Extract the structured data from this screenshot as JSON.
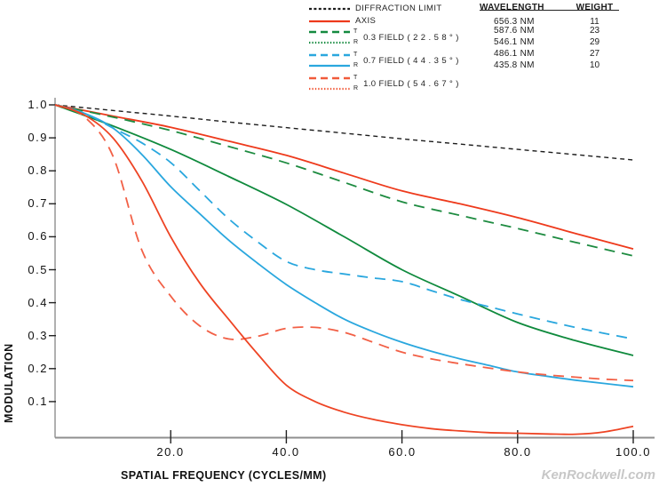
{
  "legend": {
    "items": [
      {
        "label": "DIFFRACTION LIMIT",
        "color": "#1c1c1c",
        "style": "dashed-fine"
      },
      {
        "label": "AXIS",
        "color": "#ee3a1c",
        "style": "solid"
      },
      {
        "t": "T",
        "r": "R",
        "label": "0.3 FIELD ( 2 2 . 5 8 ° )",
        "color": "#148a3f",
        "t_style": "dashed",
        "r_style": "dotted"
      },
      {
        "t": "T",
        "r": "R",
        "label": "0.7 FIELD ( 4 4 . 3 5 ° )",
        "color": "#2aa7de",
        "t_style": "dashed",
        "r_style": "solid"
      },
      {
        "t": "T",
        "r": "R",
        "label": "1.0 FIELD ( 5 4 . 6 7 ° )",
        "color": "#f15b3a",
        "t_style": "dashed",
        "r_style": "dotted"
      }
    ]
  },
  "wavelength_table": {
    "headers": [
      "WAVELENGTH",
      "WEIGHT"
    ],
    "rows": [
      [
        "656.3 NM",
        "11"
      ],
      [
        "587.6 NM",
        "23"
      ],
      [
        "546.1 NM",
        "29"
      ],
      [
        "486.1 NM",
        "27"
      ],
      [
        "435.8 NM",
        "10"
      ]
    ]
  },
  "axes": {
    "y_label": "MODULATION",
    "x_label": "SPATIAL FREQUENCY (CYCLES/MM)",
    "y_ticks": [
      "1.0",
      "0.9",
      "0.8",
      "0.7",
      "0.6",
      "0.5",
      "0.4",
      "0.3",
      "0.2",
      "0.1"
    ],
    "x_ticks": [
      "20.0",
      "40.0",
      "60.0",
      "80.0",
      "100.0"
    ]
  },
  "watermark": "KenRockwell.com",
  "chart_data": {
    "type": "line",
    "title": "MTF plot (modulation vs spatial frequency)",
    "xlabel": "SPATIAL FREQUENCY (CYCLES/MM)",
    "ylabel": "MODULATION",
    "xlim": [
      0,
      100
    ],
    "ylim": [
      0,
      1.0
    ],
    "grid": false,
    "legend_position": "top",
    "series": [
      {
        "id": "diffraction-limit",
        "name": "DIFFRACTION LIMIT",
        "color": "#1c1c1c",
        "dash": "5,4",
        "width": 1.4,
        "x": [
          0,
          10,
          20,
          30,
          40,
          50,
          60,
          70,
          80,
          90,
          100
        ],
        "y": [
          1.0,
          0.983,
          0.966,
          0.948,
          0.931,
          0.914,
          0.897,
          0.881,
          0.865,
          0.849,
          0.833
        ]
      },
      {
        "id": "axis",
        "name": "AXIS",
        "color": "#ee3a1c",
        "dash": "",
        "width": 1.8,
        "x": [
          0,
          10,
          20,
          30,
          40,
          50,
          60,
          70,
          80,
          90,
          100
        ],
        "y": [
          1.0,
          0.966,
          0.932,
          0.89,
          0.847,
          0.793,
          0.739,
          0.7,
          0.658,
          0.61,
          0.563
        ]
      },
      {
        "id": "t-0.3-field",
        "name": "T 0.3 FIELD (22.58°)",
        "color": "#1d8b40",
        "dash": "12,8",
        "width": 1.8,
        "x": [
          0,
          10,
          20,
          30,
          40,
          50,
          60,
          70,
          80,
          90,
          100
        ],
        "y": [
          1.0,
          0.963,
          0.922,
          0.874,
          0.824,
          0.765,
          0.706,
          0.665,
          0.625,
          0.583,
          0.542
        ]
      },
      {
        "id": "r-0.3-field",
        "name": "R 0.3 FIELD (22.58°)",
        "color": "#0f8a3d",
        "dash": "",
        "width": 1.8,
        "x": [
          0,
          10,
          20,
          30,
          40,
          50,
          60,
          70,
          80,
          90,
          100
        ],
        "y": [
          1.0,
          0.936,
          0.865,
          0.783,
          0.698,
          0.6,
          0.5,
          0.42,
          0.34,
          0.285,
          0.24
        ]
      },
      {
        "id": "t-0.7-field",
        "name": "T 0.7 FIELD (44.35°)",
        "color": "#2aa7de",
        "dash": "12,8",
        "width": 1.8,
        "x": [
          0,
          5,
          10,
          15,
          20,
          25,
          30,
          35,
          40,
          45,
          50,
          55,
          60,
          65,
          70,
          75,
          80,
          85,
          90,
          95,
          100
        ],
        "y": [
          1.0,
          0.975,
          0.93,
          0.885,
          0.825,
          0.74,
          0.655,
          0.585,
          0.525,
          0.5,
          0.487,
          0.475,
          0.464,
          0.437,
          0.41,
          0.388,
          0.366,
          0.345,
          0.325,
          0.307,
          0.29
        ]
      },
      {
        "id": "r-0.7-field",
        "name": "R 0.7 FIELD (44.35°)",
        "color": "#2aa7de",
        "dash": "",
        "width": 1.8,
        "x": [
          0,
          5,
          10,
          15,
          20,
          25,
          30,
          35,
          40,
          45,
          50,
          55,
          60,
          65,
          70,
          75,
          80,
          85,
          90,
          95,
          100
        ],
        "y": [
          1.0,
          0.975,
          0.93,
          0.85,
          0.752,
          0.67,
          0.59,
          0.52,
          0.455,
          0.4,
          0.35,
          0.312,
          0.28,
          0.253,
          0.23,
          0.21,
          0.19,
          0.177,
          0.165,
          0.155,
          0.145
        ]
      },
      {
        "id": "t-1.0-field",
        "name": "T 1.0 FIELD (54.67°)",
        "color": "#f26046",
        "dash": "12,8",
        "width": 1.8,
        "x": [
          0,
          5,
          10,
          15,
          20,
          25,
          30,
          35,
          40,
          45,
          50,
          55,
          60,
          65,
          70,
          75,
          80,
          85,
          90,
          95,
          100
        ],
        "y": [
          1.0,
          0.965,
          0.845,
          0.56,
          0.42,
          0.33,
          0.29,
          0.298,
          0.322,
          0.325,
          0.31,
          0.28,
          0.25,
          0.23,
          0.215,
          0.202,
          0.19,
          0.181,
          0.174,
          0.168,
          0.164
        ]
      },
      {
        "id": "r-1.0-field",
        "name": "R 1.0 FIELD (54.67°)",
        "color": "#ee4424",
        "dash": "",
        "width": 1.8,
        "x": [
          0,
          5,
          10,
          15,
          20,
          25,
          30,
          35,
          40,
          45,
          50,
          55,
          60,
          65,
          70,
          75,
          80,
          85,
          90,
          95,
          100
        ],
        "y": [
          1.0,
          0.97,
          0.9,
          0.77,
          0.6,
          0.46,
          0.35,
          0.245,
          0.15,
          0.1,
          0.068,
          0.046,
          0.03,
          0.018,
          0.011,
          0.006,
          0.004,
          0.002,
          0.001,
          0.008,
          0.025
        ]
      }
    ]
  }
}
